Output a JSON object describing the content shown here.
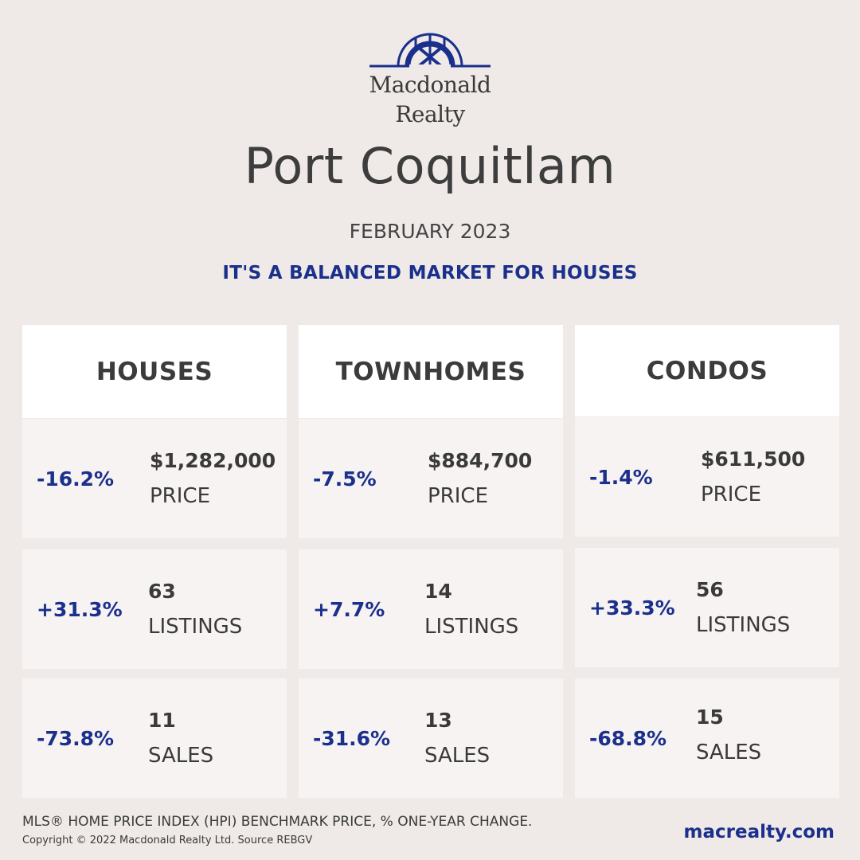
{
  "brand": {
    "line1": "Macdonald",
    "line2": "Realty"
  },
  "title": "Port Coquitlam",
  "month": "FEBRUARY 2023",
  "tagline": "IT'S A BALANCED MARKET FOR HOUSES",
  "columns": [
    {
      "heading": "HOUSES",
      "rows": [
        {
          "pct": "-16.2%",
          "value": "$1,282,000",
          "label": "PRICE"
        },
        {
          "pct": "+31.3%",
          "value": "63",
          "label": "LISTINGS"
        },
        {
          "pct": "-73.8%",
          "value": "11",
          "label": "SALES"
        }
      ]
    },
    {
      "heading": "TOWNHOMES",
      "rows": [
        {
          "pct": "-7.5%",
          "value": "$884,700",
          "label": "PRICE"
        },
        {
          "pct": "+7.7%",
          "value": "14",
          "label": "LISTINGS"
        },
        {
          "pct": "-31.6%",
          "value": "13",
          "label": "SALES"
        }
      ]
    },
    {
      "heading": "CONDOS",
      "rows": [
        {
          "pct": "-1.4%",
          "value": "$611,500",
          "label": "PRICE"
        },
        {
          "pct": "+33.3%",
          "value": "56",
          "label": "LISTINGS"
        },
        {
          "pct": "-68.8%",
          "value": "15",
          "label": "SALES"
        }
      ]
    }
  ],
  "footnote": "MLS® HOME PRICE INDEX (HPI) BENCHMARK PRICE, % ONE-YEAR CHANGE.",
  "copyright": "Copyright © 2022 Macdonald Realty Ltd. Source REBGV",
  "website": "macrealty.com",
  "colors": {
    "accent": "#1b2f8c",
    "background": "#efeae7",
    "card": "#f6f3f2",
    "header": "#ffffff"
  }
}
